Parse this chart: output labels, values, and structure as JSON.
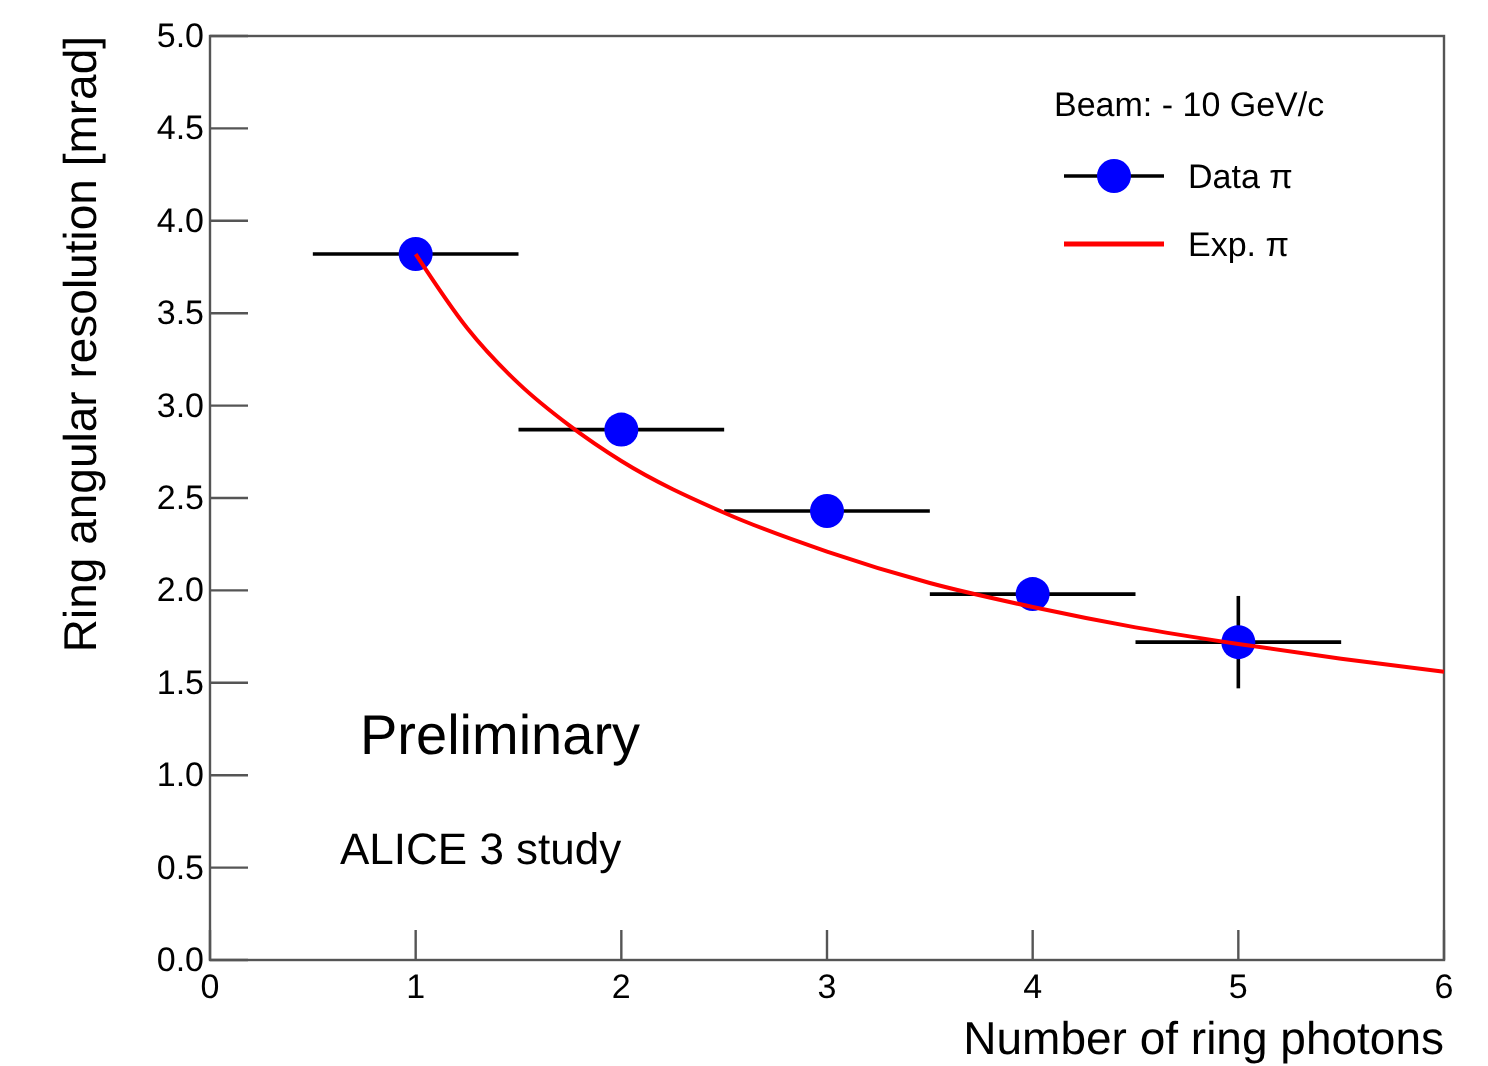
{
  "chart_data": {
    "type": "scatter",
    "xlabel": "Number of ring photons",
    "ylabel": "Ring angular resolution [mrad]",
    "legend_title": "Beam: - 10 GeV/c",
    "legend": "top right",
    "annotations": [
      "Preliminary",
      "ALICE 3 study"
    ],
    "xlim": [
      0,
      6
    ],
    "ylim": [
      0,
      5
    ],
    "xticks": [
      0,
      1,
      2,
      3,
      4,
      5,
      6
    ],
    "yticks": [
      {
        "value": 0,
        "label": "0.0"
      },
      0.5,
      {
        "value": 1,
        "label": "1.0"
      },
      1.5,
      {
        "value": 2,
        "label": "2.0"
      },
      2.5,
      {
        "value": 3,
        "label": "3.0"
      },
      3.5,
      {
        "value": 4,
        "label": "4.0"
      },
      4.5,
      {
        "value": 5,
        "label": "5.0"
      }
    ],
    "series": [
      {
        "name": "Data π",
        "marker": "circle",
        "color": "#0000ff",
        "x": [
          1,
          2,
          3,
          4,
          5
        ],
        "values": [
          3.82,
          2.87,
          2.43,
          1.98,
          1.72
        ],
        "errors": [
          null,
          null,
          null,
          null,
          0.25
        ],
        "xerrors": [
          0.5,
          0.5,
          0.5,
          0.5,
          0.5
        ]
      },
      {
        "name": "Exp. π",
        "type": "line",
        "color": "#ff0000",
        "x": [
          1,
          1.25,
          1.5,
          1.75,
          2,
          2.5,
          3,
          3.5,
          4,
          4.5,
          5,
          5.5,
          6
        ],
        "values": [
          3.82,
          3.42,
          3.12,
          2.89,
          2.7,
          2.42,
          2.21,
          2.04,
          1.91,
          1.8,
          1.71,
          1.63,
          1.56
        ]
      }
    ]
  }
}
